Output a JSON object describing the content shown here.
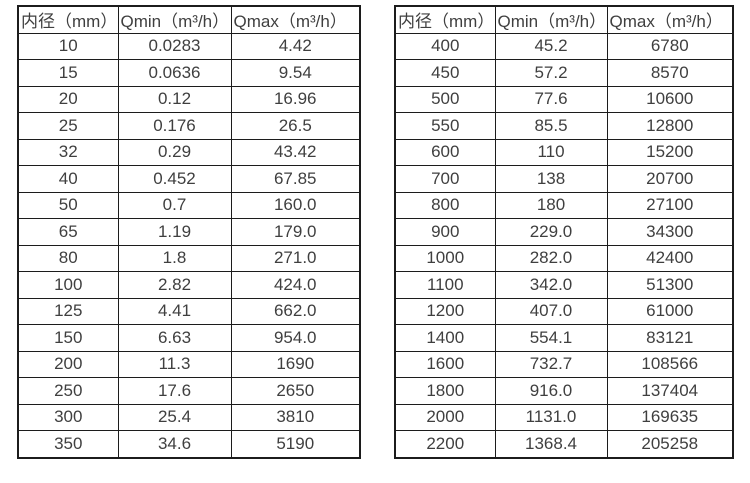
{
  "colors": {
    "background": "#ffffff",
    "border": "#1c1c1c",
    "text": "#3f3f3f"
  },
  "tables": [
    {
      "name": "flow-spec-table-small-diameters",
      "headers": [
        "内径（mm）",
        "Qmin（m³/h）",
        "Qmax（m³/h）"
      ],
      "rows": [
        [
          "10",
          "0.0283",
          "4.42"
        ],
        [
          "15",
          "0.0636",
          "9.54"
        ],
        [
          "20",
          "0.12",
          "16.96"
        ],
        [
          "25",
          "0.176",
          "26.5"
        ],
        [
          "32",
          "0.29",
          "43.42"
        ],
        [
          "40",
          "0.452",
          "67.85"
        ],
        [
          "50",
          "0.7",
          "160.0"
        ],
        [
          "65",
          "1.19",
          "179.0"
        ],
        [
          "80",
          "1.8",
          "271.0"
        ],
        [
          "100",
          "2.82",
          "424.0"
        ],
        [
          "125",
          "4.41",
          "662.0"
        ],
        [
          "150",
          "6.63",
          "954.0"
        ],
        [
          "200",
          "11.3",
          "1690"
        ],
        [
          "250",
          "17.6",
          "2650"
        ],
        [
          "300",
          "25.4",
          "3810"
        ],
        [
          "350",
          "34.6",
          "5190"
        ]
      ]
    },
    {
      "name": "flow-spec-table-large-diameters",
      "headers": [
        "内径（mm）",
        "Qmin（m³/h）",
        "Qmax（m³/h）"
      ],
      "rows": [
        [
          "400",
          "45.2",
          "6780"
        ],
        [
          "450",
          "57.2",
          "8570"
        ],
        [
          "500",
          "77.6",
          "10600"
        ],
        [
          "550",
          "85.5",
          "12800"
        ],
        [
          "600",
          "110",
          "15200"
        ],
        [
          "700",
          "138",
          "20700"
        ],
        [
          "800",
          "180",
          "27100"
        ],
        [
          "900",
          "229.0",
          "34300"
        ],
        [
          "1000",
          "282.0",
          "42400"
        ],
        [
          "1100",
          "342.0",
          "51300"
        ],
        [
          "1200",
          "407.0",
          "61000"
        ],
        [
          "1400",
          "554.1",
          "83121"
        ],
        [
          "1600",
          "732.7",
          "108566"
        ],
        [
          "1800",
          "916.0",
          "137404"
        ],
        [
          "2000",
          "1131.0",
          "169635"
        ],
        [
          "2200",
          "1368.4",
          "205258"
        ]
      ]
    }
  ]
}
